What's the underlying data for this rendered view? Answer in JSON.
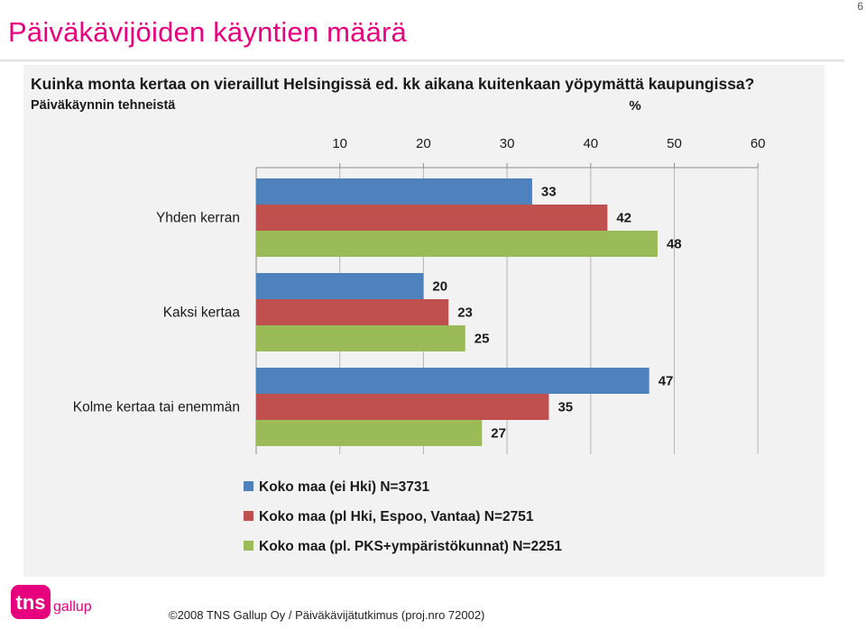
{
  "page": {
    "title": "Päiväkävijöiden käyntien määrä",
    "page_number": "6",
    "copyright": "©2008 TNS Gallup Oy / Päiväkävijätutkimus (proj.nro 72002)",
    "logo_text": "tns",
    "logo_subtext": "gallup"
  },
  "colors": {
    "title": "#e6007e",
    "series": [
      "#4f81bd",
      "#c0504d",
      "#9bbb59"
    ],
    "panel_background": "#f2f2f2",
    "logo": "#e6007e"
  },
  "chart_data": {
    "type": "bar",
    "orientation": "horizontal",
    "title": "Kuinka monta kertaa on vieraillut Helsingissä ed. kk aikana kuitenkaan yöpymättä kaupungissa?",
    "subtitle": "Päiväkäynnin tehneistä",
    "unit_label": "%",
    "categories": [
      "Yhden kerran",
      "Kaksi kertaa",
      "Kolme kertaa tai enemmän"
    ],
    "series": [
      {
        "name": "Koko maa (ei Hki) N=3731",
        "values": [
          33,
          20,
          47
        ]
      },
      {
        "name": "Koko maa (pl Hki, Espoo, Vantaa) N=2751",
        "values": [
          42,
          23,
          35
        ]
      },
      {
        "name": "Koko maa (pl. PKS+ympäristökunnat) N=2251",
        "values": [
          48,
          25,
          27
        ]
      }
    ],
    "xlim": [
      0,
      60
    ],
    "ticks": [
      10,
      20,
      30,
      40,
      50,
      60
    ],
    "axis_position": "top",
    "grid": true,
    "legend_position": "bottom",
    "data_labels": true
  }
}
